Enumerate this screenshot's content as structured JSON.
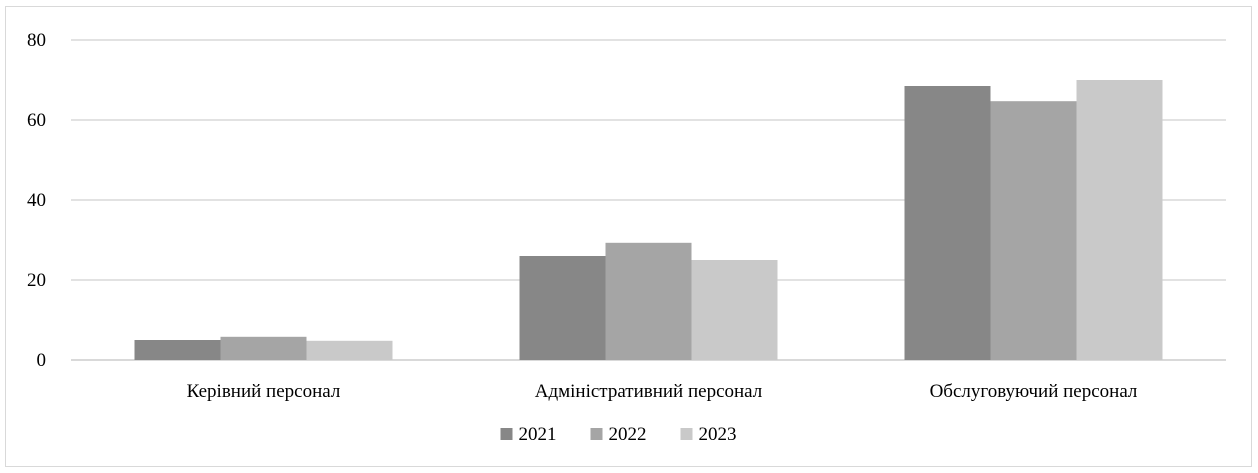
{
  "chart_data": {
    "type": "bar",
    "categories": [
      "Керівний персонал",
      "Адміністративний персонал",
      "Обслуговуючий персонал"
    ],
    "series": [
      {
        "name": "2021",
        "values": [
          5,
          26,
          68.5
        ],
        "color": "#878787"
      },
      {
        "name": "2022",
        "values": [
          5.8,
          29.3,
          64.7
        ],
        "color": "#a5a5a5"
      },
      {
        "name": "2023",
        "values": [
          4.8,
          25,
          70
        ],
        "color": "#c9c9c9"
      }
    ],
    "ylim": [
      0,
      80
    ],
    "yticks": [
      "0",
      "20",
      "40",
      "60",
      "80"
    ],
    "grid": true,
    "grid_color": "#d9d9d9",
    "legend_position": "bottom",
    "title": "",
    "xlabel": "",
    "ylabel": ""
  }
}
